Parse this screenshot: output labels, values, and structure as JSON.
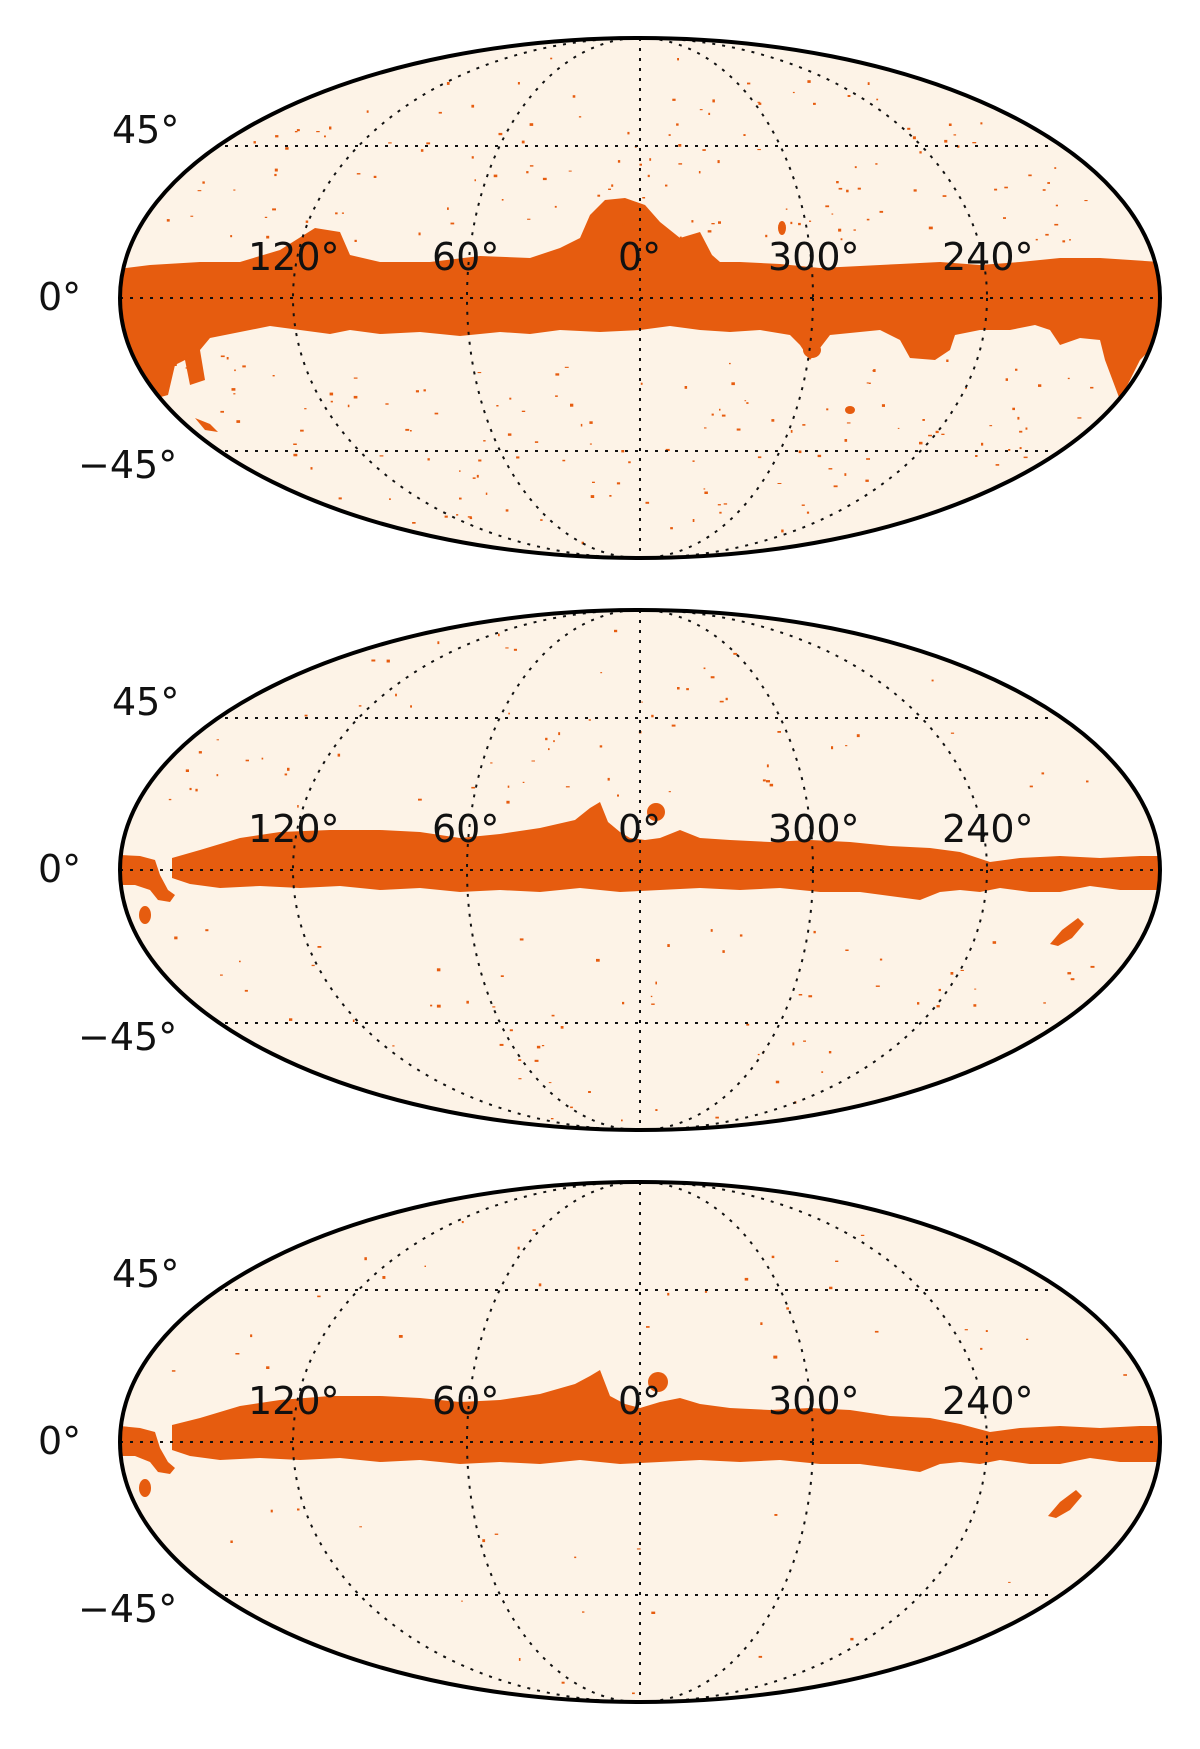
{
  "colors": {
    "background": "#fdf3e7",
    "mask": "#e65c0f",
    "outline": "#000000",
    "grid": "#111111"
  },
  "maps": [
    {
      "projection": "mollweide",
      "latitude_labels": [
        "45°",
        "0°",
        "−45°"
      ],
      "longitude_labels": [
        "120°",
        "60°",
        "0°",
        "300°",
        "240°"
      ]
    },
    {
      "projection": "mollweide",
      "latitude_labels": [
        "45°",
        "0°",
        "−45°"
      ],
      "longitude_labels": [
        "120°",
        "60°",
        "0°",
        "300°",
        "240°"
      ]
    },
    {
      "projection": "mollweide",
      "latitude_labels": [
        "45°",
        "0°",
        "−45°"
      ],
      "longitude_labels": [
        "120°",
        "60°",
        "0°",
        "300°",
        "240°"
      ]
    }
  ]
}
